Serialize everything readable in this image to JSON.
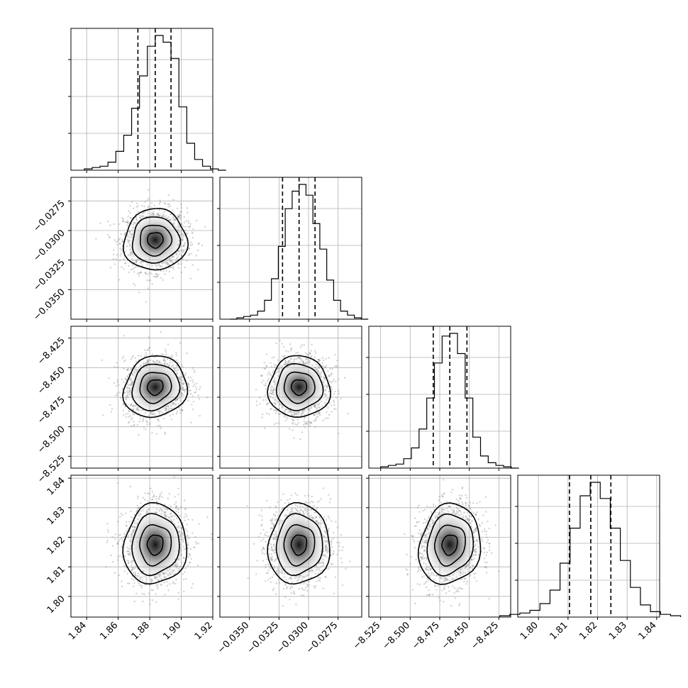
{
  "chart_data": {
    "type": "corner",
    "grid": true,
    "parameters": [
      {
        "range": [
          1.83,
          1.92
        ],
        "ticks": [
          1.84,
          1.86,
          1.88,
          1.9,
          1.92
        ],
        "tick_labels": [
          "1.84",
          "1.86",
          "1.88",
          "1.90",
          "1.92"
        ],
        "mean": 1.8835,
        "sd": 0.01,
        "quantiles": [
          1.8725,
          1.8835,
          1.8935
        ],
        "hist": [
          1,
          2,
          3,
          6,
          14,
          26,
          46,
          70,
          92,
          100,
          95,
          83,
          47,
          20,
          8,
          3,
          1,
          0
        ]
      },
      {
        "range": [
          -0.0375,
          -0.0255
        ],
        "ticks": [
          -0.035,
          -0.0325,
          -0.03,
          -0.0275
        ],
        "tick_labels": [
          "−0.0350",
          "−0.0325",
          "−0.0300",
          "−0.0275"
        ],
        "mean": -0.0308,
        "sd": 0.0013,
        "quantiles": [
          -0.0322,
          -0.0308,
          -0.02945
        ],
        "hist": [
          0,
          1,
          2,
          3,
          6,
          14,
          30,
          54,
          82,
          95,
          100,
          92,
          71,
          52,
          29,
          14,
          6,
          3,
          1,
          0
        ]
      },
      {
        "range": [
          -8.535,
          -8.415
        ],
        "ticks": [
          -8.525,
          -8.5,
          -8.475,
          -8.45,
          -8.425
        ],
        "tick_labels": [
          "−8.525",
          "−8.500",
          "−8.475",
          "−8.450",
          "−8.425"
        ],
        "mean": -8.4665,
        "sd": 0.013,
        "quantiles": [
          -8.4805,
          -8.4665,
          -8.452
        ],
        "hist": [
          1,
          2,
          3,
          7,
          15,
          29,
          52,
          78,
          98,
          100,
          85,
          52,
          23,
          9,
          4,
          2,
          1,
          0
        ]
      },
      {
        "range": [
          1.793,
          1.841
        ],
        "ticks": [
          1.8,
          1.81,
          1.82,
          1.83,
          1.84
        ],
        "tick_labels": [
          "1.80",
          "1.81",
          "1.82",
          "1.83",
          "1.84"
        ],
        "mean": 1.8175,
        "sd": 0.0068,
        "quantiles": [
          1.8105,
          1.8177,
          1.8245
        ],
        "hist": [
          1,
          2,
          3,
          5,
          10,
          20,
          40,
          66,
          90,
          100,
          88,
          66,
          42,
          22,
          9,
          4,
          2,
          1
        ]
      }
    ],
    "pairs": [
      {
        "row": 1,
        "col": 0,
        "centre": [
          1.8835,
          -0.0308
        ],
        "corr": 0.02
      },
      {
        "row": 2,
        "col": 0,
        "centre": [
          1.8835,
          -8.4665
        ],
        "corr": 0.1
      },
      {
        "row": 2,
        "col": 1,
        "centre": [
          -0.0308,
          -8.4665
        ],
        "corr": 0.0
      },
      {
        "row": 3,
        "col": 0,
        "centre": [
          1.8835,
          1.8175
        ],
        "corr": 0.05
      },
      {
        "row": 3,
        "col": 1,
        "centre": [
          -0.0308,
          1.8175
        ],
        "corr": 0.05
      },
      {
        "row": 3,
        "col": 2,
        "centre": [
          -8.4665,
          1.8175
        ],
        "corr": 0.12
      }
    ],
    "contour_levels_sigma": [
      0.5,
      1.0,
      1.5,
      2.0
    ],
    "colors": {
      "line": "#000000",
      "grid": "#b0b0b0",
      "points": "#7f7f7f"
    }
  }
}
